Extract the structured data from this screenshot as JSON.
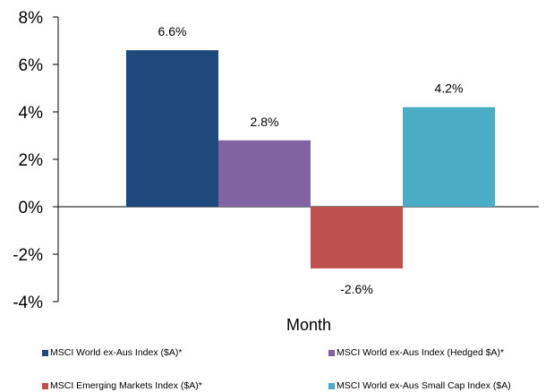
{
  "chart_data": {
    "type": "bar",
    "xlabel": "Month",
    "ylabel": "",
    "ylim": [
      -4,
      8
    ],
    "yticks": [
      "8%",
      "6%",
      "4%",
      "2%",
      "0%",
      "-2%",
      "-4%"
    ],
    "series": [
      {
        "name": "MSCI World ex-Aus Index ($A)*",
        "value": 6.6,
        "label": "6.6%",
        "color": "#1f497d"
      },
      {
        "name": "MSCI World ex-Aus Index (Hedged $A)*",
        "value": 2.8,
        "label": "2.8%",
        "color": "#8064a2"
      },
      {
        "name": "MSCI Emerging Markets Index ($A)*",
        "value": -2.6,
        "label": "-2.6%",
        "color": "#c0504d"
      },
      {
        "name": "MSCI World ex-Aus Small Cap Index ($A)",
        "value": 4.2,
        "label": "4.2%",
        "color": "#4bacc6"
      }
    ],
    "legend_position": "bottom",
    "grid": false
  }
}
